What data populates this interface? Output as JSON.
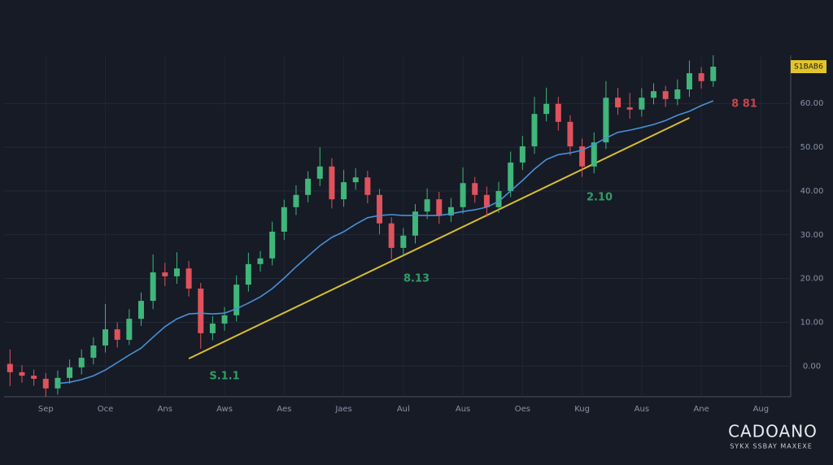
{
  "chart_data": {
    "type": "candlestick",
    "categories": [
      null,
      null,
      null,
      "Sep",
      null,
      null,
      null,
      null,
      "Oce",
      null,
      null,
      null,
      null,
      "Ans",
      null,
      null,
      null,
      null,
      "Aws",
      null,
      null,
      null,
      null,
      "Aes",
      null,
      null,
      null,
      null,
      "Jaes",
      null,
      null,
      null,
      null,
      "Aul",
      null,
      null,
      null,
      null,
      "Aus",
      null,
      null,
      null,
      null,
      "Oes",
      null,
      null,
      null,
      null,
      "Kug",
      null,
      null,
      null,
      null,
      "Aus",
      null,
      null,
      null,
      null,
      "Ane",
      null,
      null,
      null,
      null,
      "Aug",
      null,
      null
    ],
    "open": [
      0.5,
      -1.4,
      -2.2,
      -2.9,
      -5.1,
      -2.7,
      -0.3,
      1.9,
      4.7,
      8.4,
      6.0,
      10.8,
      14.9,
      21.4,
      20.5,
      22.3,
      17.7,
      7.5,
      9.7,
      11.6,
      18.6,
      23.3,
      24.6,
      30.7,
      36.3,
      39.1,
      42.8,
      45.6,
      38.1,
      42.0,
      43.1,
      39.1,
      32.6,
      27.0,
      29.8,
      35.3,
      38.1,
      34.4,
      36.3,
      41.8,
      39.1,
      36.3,
      40.0,
      46.5,
      50.2,
      57.6,
      59.9,
      55.8,
      50.2,
      45.6,
      51.1,
      61.3,
      59.1,
      58.6,
      61.3,
      62.8,
      61.0,
      63.2,
      66.9,
      65.1,
      null,
      null,
      null,
      null,
      null,
      null
    ],
    "high": [
      3.8,
      0.2,
      -0.8,
      -1.6,
      -1.0,
      1.5,
      3.8,
      6.6,
      14.2,
      10.0,
      13.0,
      16.8,
      25.5,
      23.6,
      26.0,
      24.0,
      19.0,
      11.4,
      13.5,
      20.7,
      25.9,
      26.3,
      33.0,
      38.0,
      41.3,
      44.5,
      50.0,
      47.5,
      44.8,
      45.2,
      44.6,
      40.5,
      34.0,
      31.5,
      37.0,
      40.6,
      39.8,
      38.4,
      45.4,
      43.2,
      41.0,
      42.1,
      49.0,
      52.6,
      61.5,
      63.6,
      61.5,
      57.3,
      52.0,
      53.4,
      65.1,
      63.5,
      62.4,
      63.5,
      64.6,
      64.0,
      65.5,
      69.8,
      68.3,
      71.0,
      null,
      null,
      null,
      null,
      null,
      null
    ],
    "low": [
      -4.6,
      -3.8,
      -4.5,
      -7.0,
      -6.5,
      -4.0,
      -1.9,
      0.4,
      3.1,
      4.2,
      4.8,
      9.2,
      13.0,
      18.3,
      18.8,
      15.9,
      4.0,
      5.9,
      8.1,
      10.2,
      17.0,
      21.6,
      23.0,
      28.8,
      34.5,
      37.4,
      41.1,
      36.0,
      36.4,
      40.3,
      37.2,
      30.1,
      24.4,
      25.3,
      28.0,
      33.6,
      32.5,
      32.9,
      34.8,
      37.3,
      34.1,
      35.0,
      38.6,
      44.8,
      48.5,
      55.9,
      53.8,
      48.1,
      43.2,
      44.0,
      49.6,
      57.4,
      56.5,
      57.0,
      59.8,
      59.2,
      59.6,
      61.5,
      63.4,
      63.8,
      null,
      null,
      null,
      null,
      null,
      null
    ],
    "close": [
      -1.4,
      -2.2,
      -2.9,
      -5.1,
      -2.7,
      -0.3,
      1.9,
      4.7,
      8.4,
      6.0,
      10.8,
      14.9,
      21.4,
      20.5,
      22.3,
      17.7,
      7.5,
      9.7,
      11.6,
      18.6,
      23.3,
      24.6,
      30.7,
      36.3,
      39.1,
      42.8,
      45.6,
      38.1,
      42.0,
      43.1,
      39.1,
      32.6,
      27.0,
      29.8,
      35.3,
      38.1,
      34.4,
      36.3,
      41.8,
      39.1,
      36.3,
      40.0,
      46.5,
      50.2,
      57.6,
      59.9,
      55.8,
      50.2,
      45.6,
      51.1,
      61.3,
      59.1,
      58.6,
      61.3,
      62.8,
      61.0,
      63.2,
      66.9,
      65.1,
      68.4,
      null,
      null,
      null,
      null,
      null,
      null
    ],
    "up_color": "#3fb67a",
    "down_color": "#e0525c",
    "moving_average": {
      "color": "#4a8fd6",
      "values": [
        null,
        null,
        null,
        null,
        -4.0,
        -3.7,
        -3.1,
        -2.2,
        -0.9,
        0.8,
        2.5,
        4.1,
        6.6,
        9.0,
        10.8,
        11.9,
        12.1,
        11.9,
        12.1,
        13.1,
        14.4,
        15.8,
        17.7,
        20.1,
        22.7,
        25.1,
        27.5,
        29.4,
        30.7,
        32.4,
        33.9,
        34.4,
        34.6,
        34.4,
        34.4,
        34.4,
        34.4,
        34.8,
        35.3,
        35.7,
        36.3,
        37.6,
        40.0,
        42.4,
        45.0,
        47.2,
        48.3,
        48.7,
        49.3,
        50.6,
        52.1,
        53.4,
        53.9,
        54.5,
        55.2,
        56.1,
        57.3,
        58.2,
        59.5,
        60.6,
        null,
        null,
        null,
        null,
        null,
        null
      ]
    },
    "trendline": {
      "color": "#d8bd2c",
      "from": [
        15,
        1.7
      ],
      "to": [
        57,
        56.7
      ]
    },
    "ylim": [
      -7,
      71
    ],
    "yticks": [
      {
        "value": 0,
        "label": "0.00"
      },
      {
        "value": 10,
        "label": "10.00"
      },
      {
        "value": 20,
        "label": "20.00"
      },
      {
        "value": 30,
        "label": "30.00"
      },
      {
        "value": 40,
        "label": "40.00"
      },
      {
        "value": 50,
        "label": "50.00"
      },
      {
        "value": 60,
        "label": "60.00"
      }
    ],
    "grid": true,
    "price_tag": "S1BAB6",
    "annotations": [
      "S.1.1",
      "8.13",
      "2.10",
      "8 81"
    ],
    "brand": "CADOANO",
    "brand_sub": "SYKX SSBAY MAXEXE"
  }
}
